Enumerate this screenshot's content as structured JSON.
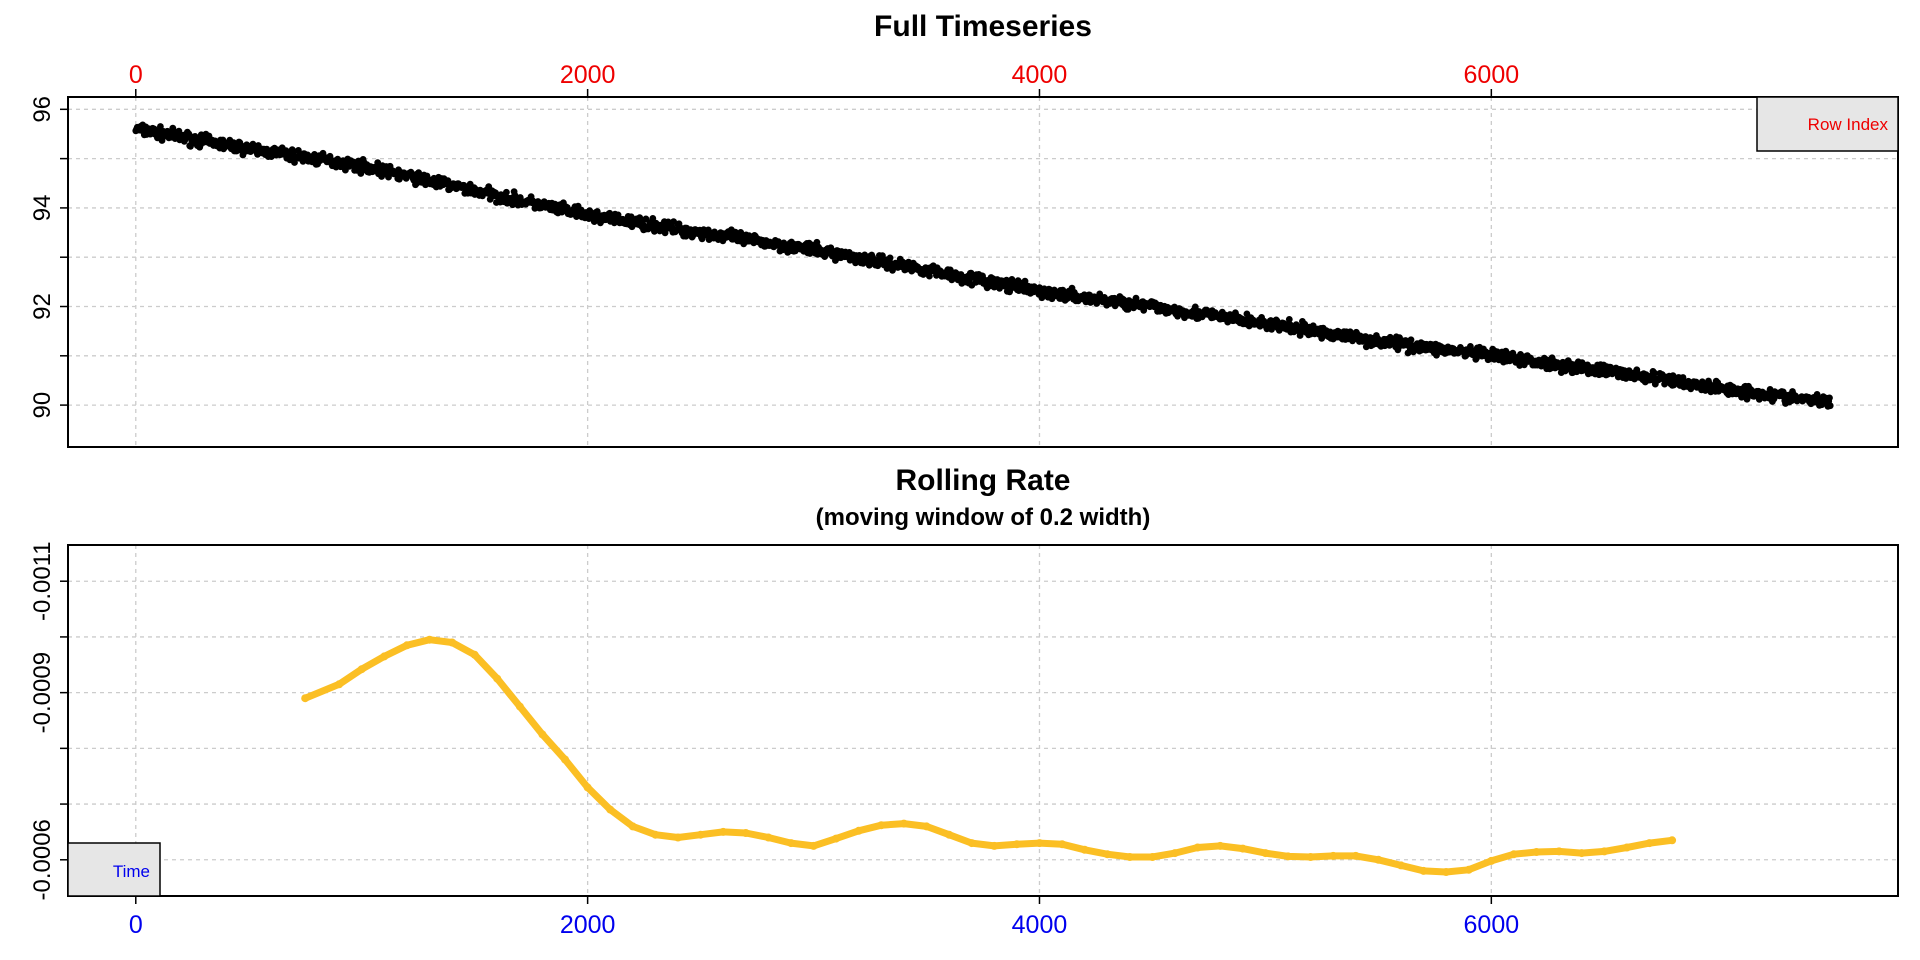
{
  "chart_data": [
    {
      "type": "scatter",
      "title": "Full Timeseries",
      "xlabel": "",
      "ylabel": "",
      "x_axis_position": "top",
      "x_tick_color": "#ee0000",
      "xlim": [
        -300,
        7800
      ],
      "ylim": [
        89.15,
        96.25
      ],
      "x_ticks": [
        0,
        2000,
        4000,
        6000
      ],
      "x_tick_labels": [
        "0",
        "2000",
        "4000",
        "6000"
      ],
      "y_ticks": [
        90,
        91,
        92,
        93,
        94,
        95,
        96
      ],
      "y_tick_labels": [
        "90",
        "",
        "92",
        "",
        "94",
        "",
        "96"
      ],
      "grid": true,
      "legend": {
        "label": "Row Index",
        "position": "top-right",
        "text_color": "#ee0000",
        "fill": "#e6e6e6"
      },
      "marker_color": "#000000",
      "trend": {
        "x": [
          0,
          500,
          1000,
          1500,
          2000,
          2500,
          3000,
          3500,
          4000,
          4500,
          5000,
          5500,
          6000,
          6500,
          7000,
          7500
        ],
        "y": [
          95.6,
          95.2,
          94.85,
          94.35,
          93.85,
          93.5,
          93.15,
          92.75,
          92.3,
          92.0,
          91.65,
          91.3,
          91.0,
          90.7,
          90.35,
          90.05
        ]
      },
      "x_range": [
        0,
        7500
      ],
      "approx_points": 7500
    },
    {
      "type": "line",
      "title": "Rolling Rate",
      "subtitle": "(moving window of 0.2 width)",
      "xlabel": "",
      "ylabel": "",
      "x_axis_position": "bottom",
      "x_tick_color": "#0000ee",
      "xlim": [
        -300,
        7800
      ],
      "ylim": [
        -0.000535,
        -0.001165
      ],
      "y_reversed": true,
      "x_ticks": [
        0,
        2000,
        4000,
        6000
      ],
      "x_tick_labels": [
        "0",
        "2000",
        "4000",
        "6000"
      ],
      "y_ticks": [
        -0.0011,
        -0.001,
        -0.0009,
        -0.0008,
        -0.0007,
        -0.0006
      ],
      "y_tick_labels": [
        "-0.0011",
        "",
        "-0.0009",
        "",
        "",
        "-0.0006"
      ],
      "grid": true,
      "legend": {
        "label": "Time",
        "position": "bottom-left",
        "text_color": "#0000ee",
        "fill": "#e6e6e6"
      },
      "line_color": "#fbbf24",
      "series": [
        {
          "x": [
            750,
            900,
            1000,
            1100,
            1200,
            1300,
            1400,
            1500,
            1600,
            1700,
            1800,
            1900,
            2000,
            2100,
            2200,
            2300,
            2400,
            2500,
            2600,
            2700,
            2800,
            2900,
            3000,
            3100,
            3200,
            3300,
            3400,
            3500,
            3600,
            3700,
            3800,
            3900,
            4000,
            4100,
            4200,
            4300,
            4400,
            4500,
            4600,
            4700,
            4800,
            4900,
            5000,
            5100,
            5200,
            5300,
            5400,
            5500,
            5600,
            5700,
            5800,
            5900,
            6000,
            6100,
            6200,
            6300,
            6400,
            6500,
            6600,
            6700,
            6800
          ],
          "y": [
            -0.00089,
            -0.000915,
            -0.000942,
            -0.000965,
            -0.000985,
            -0.000995,
            -0.00099,
            -0.000968,
            -0.000925,
            -0.000875,
            -0.000825,
            -0.00078,
            -0.00073,
            -0.00069,
            -0.00066,
            -0.000645,
            -0.00064,
            -0.000645,
            -0.00065,
            -0.000648,
            -0.00064,
            -0.00063,
            -0.000625,
            -0.000638,
            -0.000652,
            -0.000662,
            -0.000665,
            -0.00066,
            -0.000645,
            -0.00063,
            -0.000625,
            -0.000628,
            -0.00063,
            -0.000628,
            -0.000618,
            -0.00061,
            -0.000605,
            -0.000605,
            -0.000612,
            -0.000622,
            -0.000625,
            -0.00062,
            -0.000612,
            -0.000606,
            -0.000605,
            -0.000607,
            -0.000607,
            -0.0006,
            -0.00059,
            -0.00058,
            -0.000578,
            -0.000582,
            -0.000598,
            -0.00061,
            -0.000614,
            -0.000615,
            -0.000612,
            -0.000615,
            -0.000622,
            -0.00063,
            -0.000635
          ]
        }
      ]
    }
  ]
}
